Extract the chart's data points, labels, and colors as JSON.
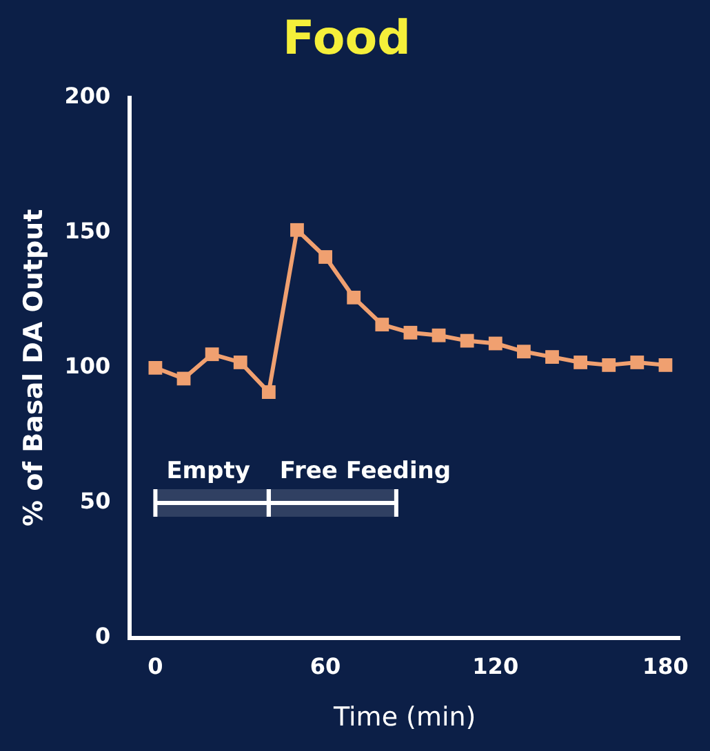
{
  "chart_data": {
    "type": "line",
    "title": "Food",
    "xlabel": "Time (min)",
    "ylabel": "% of Basal DA Output",
    "x": [
      0,
      10,
      20,
      30,
      40,
      50,
      60,
      70,
      80,
      90,
      100,
      110,
      120,
      130,
      140,
      150,
      160,
      170,
      180
    ],
    "series": [
      {
        "color": "#f0a070",
        "values": [
          100,
          96,
          105,
          102,
          91,
          151,
          141,
          126,
          116,
          113,
          112,
          110,
          109,
          106,
          104,
          102,
          101,
          102,
          101
        ]
      }
    ],
    "xlim": [
      -9,
      185
    ],
    "xticks": [
      0,
      60,
      120,
      180
    ],
    "ylim": [
      0,
      200
    ],
    "yticks": [
      0,
      50,
      100,
      150,
      200
    ],
    "bands": [
      {
        "axis": "x",
        "from": 0,
        "to": 40,
        "label": "Empty",
        "color": "#ffffff"
      },
      {
        "axis": "x",
        "from": 40,
        "to": 85,
        "label": "Free Feeding",
        "color": "#ffffff"
      }
    ],
    "marker": "square",
    "line_style": "solid",
    "grid": false,
    "legend": false
  }
}
